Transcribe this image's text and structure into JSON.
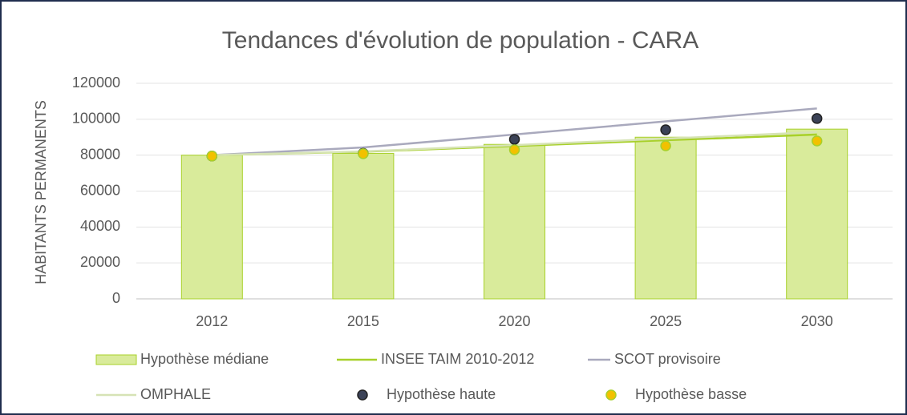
{
  "chart_data": {
    "type": "combo",
    "title": "Tendances d'évolution de population - CARA",
    "y_label": "HABITANTS PERMANENTS",
    "categories": [
      "2012",
      "2015",
      "2020",
      "2025",
      "2030"
    ],
    "ylim": [
      0,
      120000
    ],
    "yticks": [
      0,
      20000,
      40000,
      60000,
      80000,
      100000,
      120000
    ],
    "grid": true,
    "legend": "bottom",
    "series": [
      {
        "name": "Hypothèse médiane",
        "kind": "bar",
        "color": "#d9eb9b",
        "values": [
          80000,
          81000,
          86000,
          90000,
          94500
        ]
      },
      {
        "name": "INSEE TAIM 2010-2012",
        "kind": "line",
        "color": "#a8d02a",
        "values": [
          80000,
          81900,
          85100,
          88300,
          91500
        ]
      },
      {
        "name": "SCOT provisoire",
        "kind": "line",
        "color": "#a9a9bd",
        "values": [
          80000,
          84300,
          91500,
          98800,
          106000
        ]
      },
      {
        "name": "OMPHALE",
        "kind": "line",
        "color": "#d6e3b5",
        "values": [
          80000,
          82100,
          85600,
          89200,
          92800
        ]
      },
      {
        "name": "Hypothèse haute",
        "kind": "scatter",
        "color": "#3b4257",
        "values": [
          79500,
          81000,
          88800,
          94100,
          100400
        ]
      },
      {
        "name": "Hypothèse basse",
        "kind": "scatter",
        "color": "#f2c100",
        "values": [
          79500,
          80800,
          83000,
          85200,
          87900
        ]
      }
    ]
  }
}
